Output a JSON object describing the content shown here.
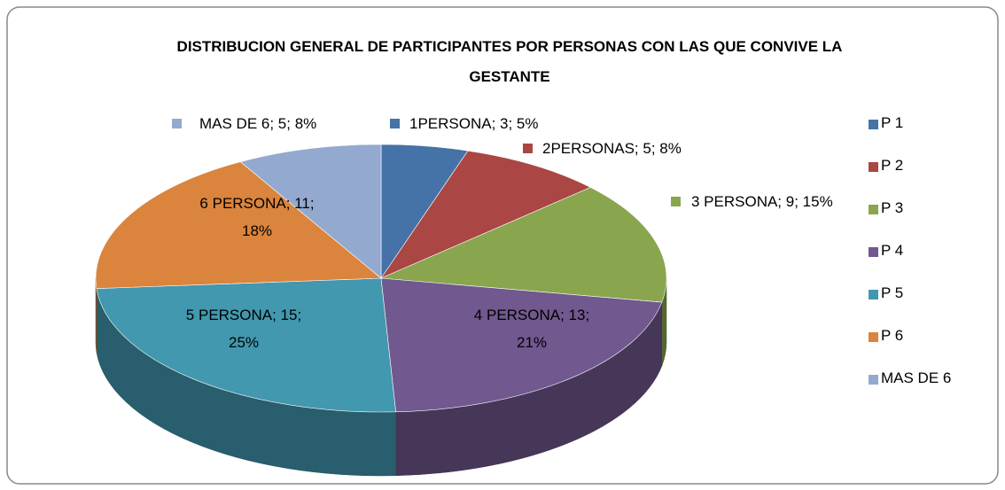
{
  "chart_data": {
    "type": "pie3d",
    "title": "DISTRIBUCION GENERAL DE PARTICIPANTES POR PERSONAS CON LAS QUE CONVIVE LA GESTANTE",
    "categories": [
      "P 1",
      "P 2",
      "P 3",
      "P 4",
      "P 5",
      "P 6",
      "MAS DE 6"
    ],
    "values": [
      3,
      5,
      9,
      13,
      15,
      11,
      5
    ],
    "value_labels": [
      "1PERSONA; 3; 5%",
      "2PERSONAS; 5; 8%",
      "3 PERSONA; 9; 15%",
      "4 PERSONA; 13; 21%",
      "5 PERSONA; 15; 25%",
      "6 PERSONA; 11; 18%",
      "MAS DE 6; 5; 8%"
    ],
    "colors": [
      "#4572a7",
      "#aa4643",
      "#89a54e",
      "#71588f",
      "#4198af",
      "#db843d",
      "#93a9cf"
    ],
    "legend": "right"
  }
}
